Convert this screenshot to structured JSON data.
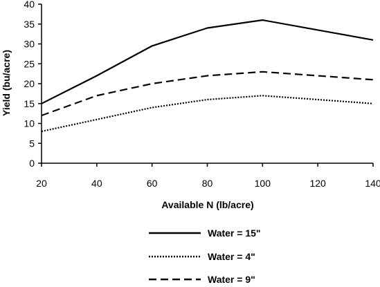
{
  "chart_data": {
    "type": "line",
    "xlabel": "Available N (lb/acre)",
    "ylabel": "Yield (bu/acre)",
    "xlim": [
      20,
      140
    ],
    "ylim": [
      0,
      40
    ],
    "xticks": [
      20,
      40,
      60,
      80,
      100,
      120,
      140
    ],
    "yticks": [
      0,
      5,
      10,
      15,
      20,
      25,
      30,
      35,
      40
    ],
    "grid": false,
    "legend_position": "bottom-center",
    "x": [
      20,
      40,
      60,
      80,
      100,
      120,
      140
    ],
    "series": [
      {
        "name": "Water = 15\"",
        "style": "solid",
        "color": "#000000",
        "values": [
          15,
          22,
          29.5,
          34,
          36,
          33.5,
          31
        ]
      },
      {
        "name": "Water = 4\"",
        "style": "dotted",
        "color": "#000000",
        "values": [
          8,
          11,
          14,
          16,
          17,
          16,
          15
        ]
      },
      {
        "name": "Water = 9\"",
        "style": "dashed",
        "color": "#000000",
        "values": [
          12,
          17,
          20,
          22,
          23,
          22,
          21
        ]
      }
    ]
  }
}
